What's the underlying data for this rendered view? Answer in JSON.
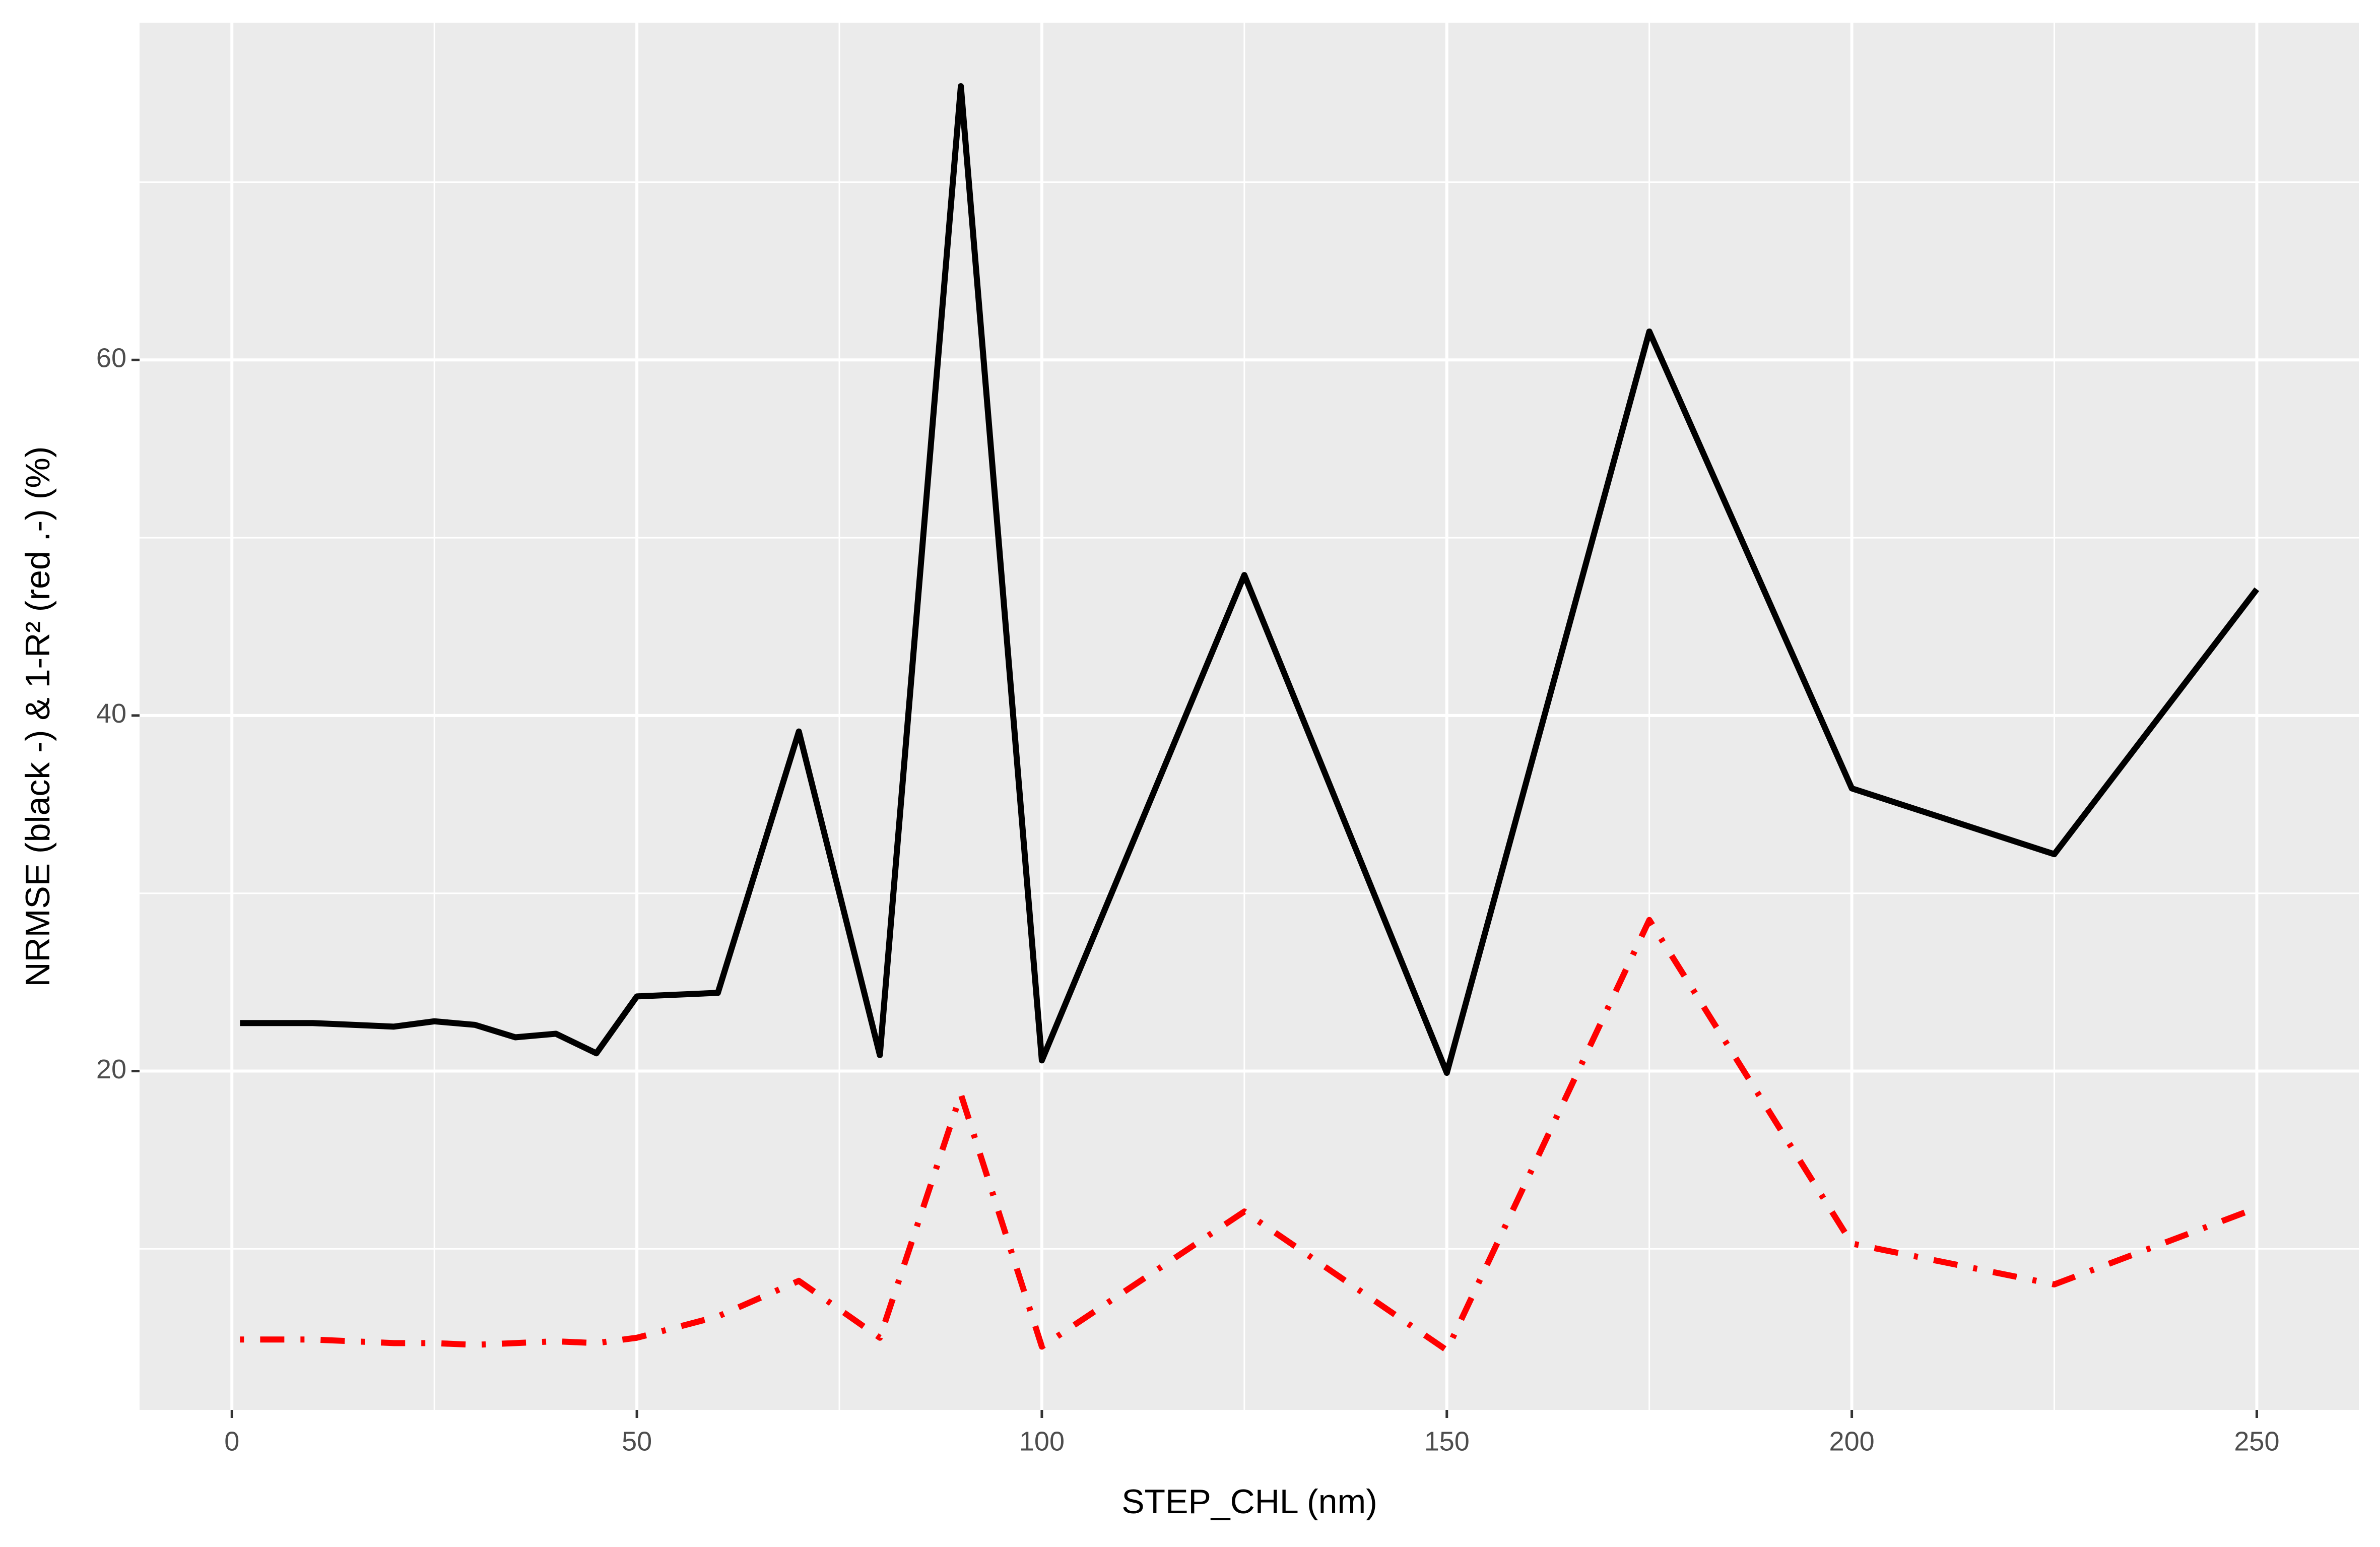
{
  "chart_data": {
    "type": "line",
    "x_label": "STEP_CHL (nm)",
    "y_label": "NRMSE (black -) & 1-R² (red .-) (%)",
    "x": [
      1,
      10,
      20,
      25,
      30,
      35,
      40,
      45,
      50,
      60,
      70,
      80,
      90,
      100,
      125,
      150,
      175,
      200,
      225,
      250
    ],
    "series": [
      {
        "color": "#000000",
        "dash": "solid",
        "values": [
          22.7,
          22.7,
          22.5,
          22.8,
          22.6,
          21.9,
          22.1,
          21.0,
          24.2,
          24.4,
          39.1,
          20.9,
          75.4,
          20.6,
          47.9,
          19.9,
          61.6,
          35.9,
          32.2,
          47.1
        ]
      },
      {
        "color": "#ff0000",
        "dash": "dotdash",
        "values": [
          4.9,
          4.9,
          4.7,
          4.7,
          4.6,
          4.7,
          4.8,
          4.7,
          5.0,
          6.2,
          8.2,
          5.0,
          18.7,
          4.5,
          12.1,
          4.3,
          28.5,
          10.3,
          8.0,
          12.3
        ]
      }
    ],
    "xlim": [
      -11.4,
      262.6
    ],
    "ylim": [
      0.94,
      78.97
    ],
    "xticks": [
      0,
      50,
      100,
      150,
      200,
      250
    ],
    "yticks": [
      20,
      40,
      60
    ],
    "grid": true,
    "panel_color": "#ebebeb"
  }
}
